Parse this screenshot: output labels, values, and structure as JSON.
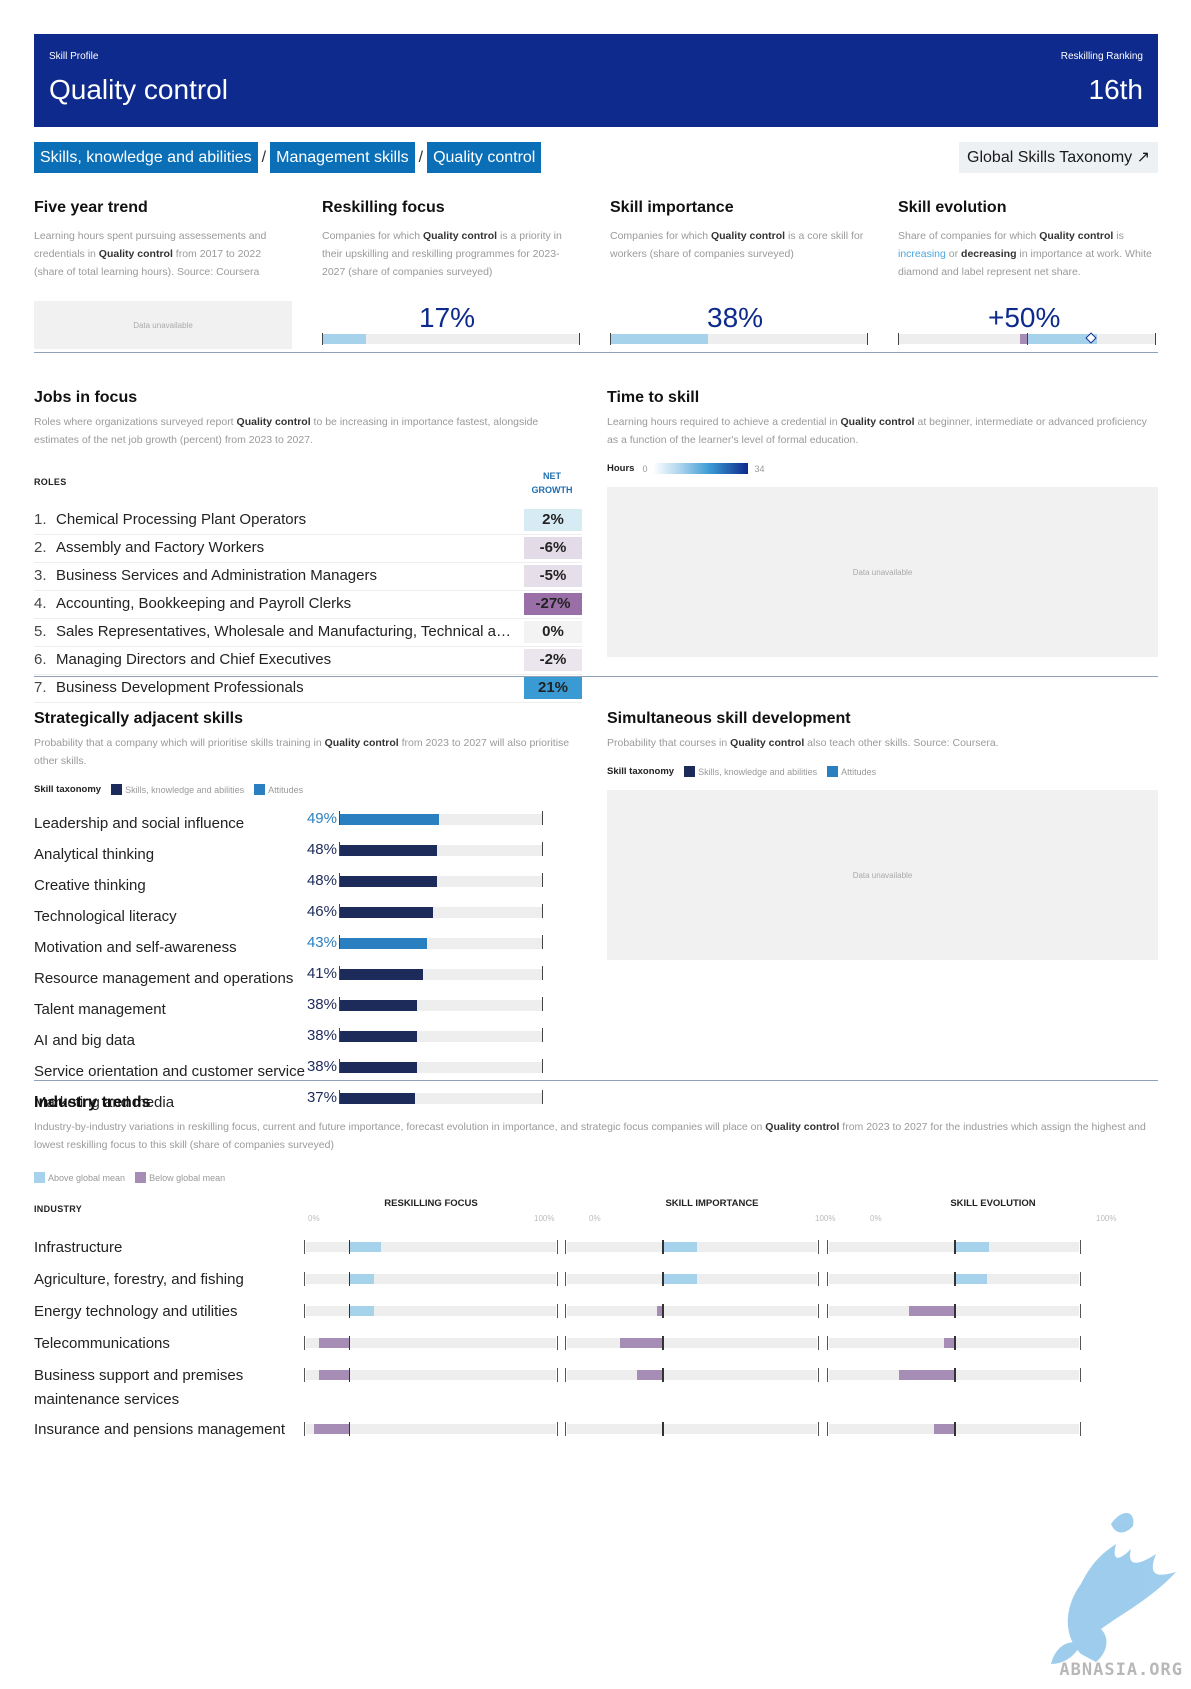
{
  "header": {
    "kicker_left": "Skill Profile",
    "title": "Quality control",
    "kicker_right": "Reskilling Ranking",
    "rank": "16th"
  },
  "breadcrumbs": [
    "Skills, knowledge and abilities",
    "Management skills",
    "Quality control"
  ],
  "breadcrumb_separator": "/",
  "taxonomy_link": "Global Skills Taxonomy ↗",
  "five_year_trend": {
    "title": "Five year trend",
    "desc_1": "Learning hours spent pursuing assessements and credentials in ",
    "desc_bold": "Quality control",
    "desc_2": " from 2017 to 2022 (share of total learning hours). Source: Coursera",
    "unavailable": "Data unavailable"
  },
  "reskilling_focus": {
    "title": "Reskilling focus",
    "desc_1": "Companies for which ",
    "desc_bold": "Quality control",
    "desc_2": " is a priority in their upskilling and reskilling programmes for 2023-2027 (share of companies surveyed)",
    "value": "17%",
    "fill_fraction": 0.17
  },
  "skill_importance": {
    "title": "Skill importance",
    "desc_1": "Companies for which ",
    "desc_bold": "Quality control",
    "desc_2": " is a core skill for workers (share of companies surveyed)",
    "value": "38%",
    "fill_fraction": 0.38
  },
  "skill_evolution": {
    "title": "Skill evolution",
    "desc_1": "Share of companies for which ",
    "desc_bold": "Quality control",
    "desc_2": " is ",
    "desc_increasing": "increasing",
    "desc_3": " or ",
    "desc_decreasing": "decreasing",
    "desc_4": " in importance at work. White diamond and label represent net share.",
    "value": "+50%"
  },
  "jobs": {
    "title": "Jobs in focus",
    "desc_1": "Roles where organizations surveyed report ",
    "desc_bold": "Quality control",
    "desc_2": " to be increasing in importance fastest, alongside estimates of the net job growth (percent) from 2023 to 2027.",
    "roles_label": "ROLES",
    "net_label_1": "NET",
    "net_label_2": "GROWTH",
    "rows": [
      {
        "num": "1.",
        "name": "Chemical Processing Plant Operators",
        "value": "2%",
        "color": "#d7ebf5"
      },
      {
        "num": "2.",
        "name": "Assembly and Factory Workers",
        "value": "-6%",
        "color": "#e3dbe8"
      },
      {
        "num": "3.",
        "name": "Business Services and Administration Managers",
        "value": "-5%",
        "color": "#e6dfea"
      },
      {
        "num": "4.",
        "name": "Accounting, Bookkeeping and Payroll Clerks",
        "value": "-27%",
        "color": "#9a6ea6"
      },
      {
        "num": "5.",
        "name": "Sales Representatives, Wholesale and Manufacturing, Technical and Scientific Products",
        "value": "0%",
        "color": "#f3f3f3"
      },
      {
        "num": "6.",
        "name": "Managing Directors and Chief Executives",
        "value": "-2%",
        "color": "#ebe6ee"
      },
      {
        "num": "7.",
        "name": "Business Development Professionals",
        "value": "21%",
        "color": "#3a9ad4"
      }
    ]
  },
  "time_to_skill": {
    "title": "Time to skill",
    "desc_1": "Learning hours required to achieve a credential in ",
    "desc_bold": "Quality control",
    "desc_2": " at beginner, intermediate or advanced proficiency as a function of the learner's level of formal education.",
    "hours_label": "Hours",
    "scale_min": "0",
    "scale_max": "34",
    "unavailable": "Data unavailable"
  },
  "adjacent": {
    "title": "Strategically adjacent skills",
    "desc_1": "Probability that a company which will prioritise skills training in ",
    "desc_bold": "Quality control",
    "desc_2": " from 2023 to 2027 will also prioritise other skills.",
    "legend_title": "Skill taxonomy",
    "legend_ska": "Skills, knowledge and abilities",
    "legend_att": "Attitudes",
    "color_ska": "#1c2b5a",
    "color_att": "#2a7fc0",
    "rows": [
      {
        "label": "Leadership and social influence",
        "value": "49%",
        "num": 49,
        "kind": "att"
      },
      {
        "label": "Analytical thinking",
        "value": "48%",
        "num": 48,
        "kind": "ska"
      },
      {
        "label": "Creative thinking",
        "value": "48%",
        "num": 48,
        "kind": "ska"
      },
      {
        "label": "Technological literacy",
        "value": "46%",
        "num": 46,
        "kind": "ska"
      },
      {
        "label": "Motivation and self-awareness",
        "value": "43%",
        "num": 43,
        "kind": "att"
      },
      {
        "label": "Resource management and operations",
        "value": "41%",
        "num": 41,
        "kind": "ska"
      },
      {
        "label": "Talent management",
        "value": "38%",
        "num": 38,
        "kind": "ska"
      },
      {
        "label": "AI and big data",
        "value": "38%",
        "num": 38,
        "kind": "ska"
      },
      {
        "label": "Service orientation and customer service",
        "value": "38%",
        "num": 38,
        "kind": "ska"
      },
      {
        "label": "Marketing and media",
        "value": "37%",
        "num": 37,
        "kind": "ska"
      }
    ]
  },
  "simultaneous": {
    "title": "Simultaneous skill development",
    "desc_1": "Probability that courses in ",
    "desc_bold": "Quality control",
    "desc_2": " also teach other skills. Source: Coursera.",
    "legend_title": "Skill taxonomy",
    "legend_ska": "Skills, knowledge and abilities",
    "legend_att": "Attitudes",
    "unavailable": "Data unavailable"
  },
  "industry": {
    "title": "Industry trends",
    "desc_1": "Industry-by-industry variations in reskilling focus, current and future importance, forecast evolution in importance, and strategic focus companies will place on ",
    "desc_bold": "Quality control",
    "desc_2": " from 2023 to 2027 for the industries which assign the highest and lowest reskilling focus to this skill (share of companies surveyed)",
    "legend_above": "Above global mean",
    "legend_below": "Below global mean",
    "color_above": "#a7d2ec",
    "color_below": "#a58db5",
    "industry_label": "INDUSTRY",
    "col_heads": [
      "RESKILLING FOCUS",
      "SKILL IMPORTANCE",
      "SKILL EVOLUTION"
    ],
    "scale_min": "0%",
    "scale_max": "100%",
    "means": [
      0.17,
      0.38,
      0.5
    ],
    "rows": [
      {
        "label": "Infrastructure",
        "vals": [
          0.3,
          0.52,
          0.64
        ]
      },
      {
        "label": "Agriculture, forestry, and fishing",
        "vals": [
          0.27,
          0.52,
          0.63
        ]
      },
      {
        "label": "Energy technology and utilities",
        "vals": [
          0.27,
          0.36,
          0.32
        ]
      },
      {
        "label": "Telecommunications",
        "vals": [
          0.05,
          0.21,
          0.46
        ]
      },
      {
        "label": "Business support and premises maintenance services",
        "vals": [
          0.05,
          0.28,
          0.28
        ]
      },
      {
        "label": "Insurance and pensions management",
        "vals": [
          0.03,
          0.38,
          0.42
        ]
      }
    ]
  },
  "watermark": "ABNASIA.ORG"
}
